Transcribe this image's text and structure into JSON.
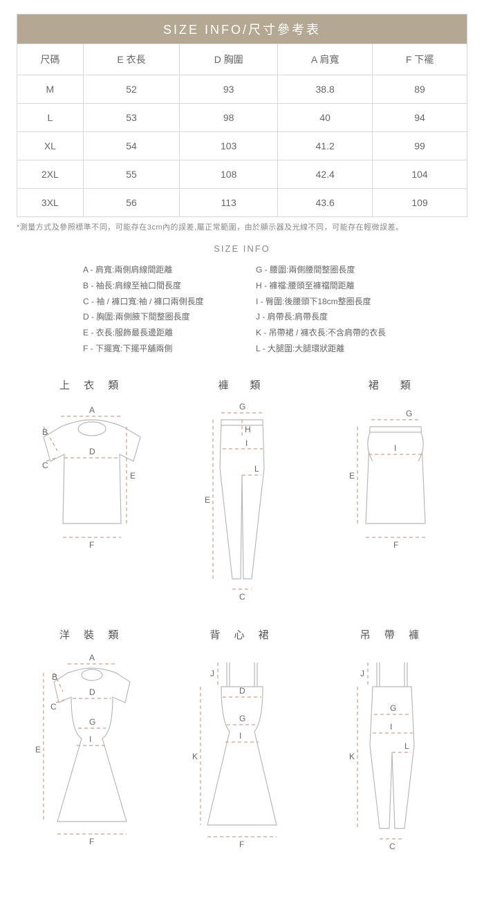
{
  "header": {
    "title": "SIZE  INFO/尺寸參考表"
  },
  "table": {
    "columns": [
      "尺碼",
      "E 衣長",
      "D 胸圍",
      "A 肩寬",
      "F 下襬"
    ],
    "rows": [
      [
        "M",
        "52",
        "93",
        "38.8",
        "89"
      ],
      [
        "L",
        "53",
        "98",
        "40",
        "94"
      ],
      [
        "XL",
        "54",
        "103",
        "41.2",
        "99"
      ],
      [
        "2XL",
        "55",
        "108",
        "42.4",
        "104"
      ],
      [
        "3XL",
        "56",
        "113",
        "43.6",
        "109"
      ]
    ]
  },
  "note": "*測量方式及參照標準不同，可能存在3cm內的誤差,屬正常範圍，由於顯示器及光線不同，可能存在輕微誤差。",
  "subtitle": "SIZE INFO",
  "legend": {
    "left": [
      "A - 肩寬:兩側肩線間距離",
      "B - 袖長:肩線至袖口間長度",
      "C - 袖 / 褲口寬:袖 / 褲口兩側長度",
      "D - 胸圍:兩側腋下間整圈長度",
      "E - 衣長:服飾最長邊距離",
      "F - 下擺寬:下擺平舖兩側"
    ],
    "right": [
      "G - 腰圍:兩側腰間整圈長度",
      "H - 褲襠:腰頭至褲襠間距離",
      "I - 臀圍:後腰頭下18cm整圈長度",
      "J - 肩帶長:肩帶長度",
      "K - 吊帶裙 / 褲衣長:不含肩帶的衣長",
      "L - 大腿圍:大腿環狀距離"
    ]
  },
  "garments": {
    "row1": [
      {
        "title": "上 衣 類",
        "labels": {
          "A": "A",
          "B": "B",
          "C": "C",
          "D": "D",
          "E": "E",
          "F": "F"
        }
      },
      {
        "title": "褲　類",
        "labels": {
          "G": "G",
          "H": "H",
          "I": "I",
          "L": "L",
          "E": "E",
          "C": "C"
        }
      },
      {
        "title": "裙　類",
        "labels": {
          "G": "G",
          "I": "I",
          "E": "E",
          "F": "F"
        }
      }
    ],
    "row2": [
      {
        "title": "洋 裝 類",
        "labels": {
          "A": "A",
          "B": "B",
          "C": "C",
          "D": "D",
          "G": "G",
          "I": "I",
          "E": "E",
          "F": "F"
        }
      },
      {
        "title": "背 心 裙",
        "labels": {
          "J": "J",
          "D": "D",
          "G": "G",
          "I": "I",
          "K": "K",
          "F": "F"
        }
      },
      {
        "title": "吊 帶 褲",
        "labels": {
          "J": "J",
          "G": "G",
          "I": "I",
          "L": "L",
          "K": "K",
          "C": "C"
        }
      }
    ]
  },
  "colors": {
    "header_bg": "#b5a893",
    "border": "#d8d8d8",
    "text": "#666666",
    "measure": "#c9a08f",
    "outline": "#b8b8b8"
  }
}
